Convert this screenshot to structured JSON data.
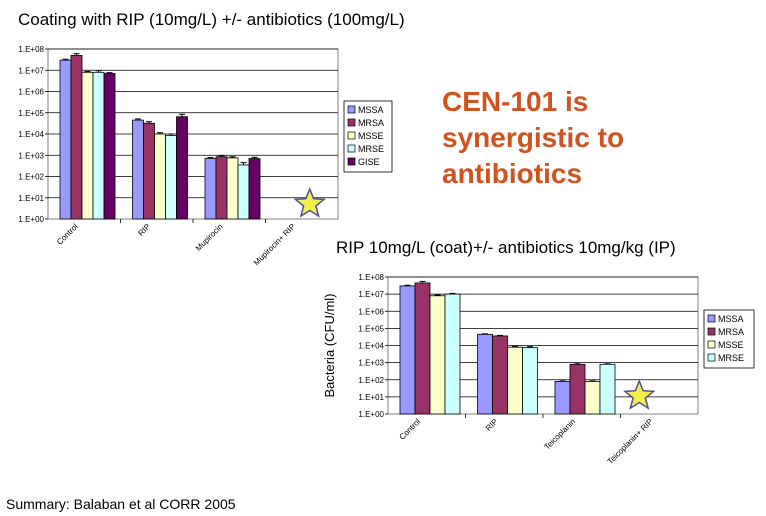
{
  "slide": {
    "title": "Coating with RIP (10mg/L) +/- antibiotics (100mg/L)",
    "headline": [
      "CEN-101 is",
      "synergistic to",
      "antibiotics"
    ],
    "footer": "Summary:  Balaban  et al  CORR  2005",
    "headline_color": "#d0531f",
    "star_icon": "star-icon",
    "star_color": "#f2ef4a"
  },
  "chart_data": [
    {
      "type": "bar",
      "title": "Coating with RIP (10mg/L) +/- antibiotics (100mg/L)",
      "xlabel": "",
      "ylabel": "",
      "y_scale": "log",
      "ylim": [
        1,
        100000000
      ],
      "y_ticks": [
        "1.E+00",
        "1.E+01",
        "1.E+02",
        "1.E+03",
        "1.E+04",
        "1.E+05",
        "1.E+06",
        "1.E+07",
        "1.E+08"
      ],
      "categories": [
        "Control",
        "RIP",
        "Mupirocin",
        "Mupirocin+ RIP"
      ],
      "legend_position": "right",
      "series": [
        {
          "name": "MSSA",
          "color": "#9999ff",
          "values": [
            30000000,
            45000,
            700,
            null
          ],
          "errors": [
            3000000,
            6000,
            80,
            null
          ]
        },
        {
          "name": "MRSA",
          "color": "#993366",
          "values": [
            50000000,
            32000,
            850,
            null
          ],
          "errors": [
            10000000,
            6000,
            100,
            null
          ]
        },
        {
          "name": "MSSE",
          "color": "#ffffcc",
          "values": [
            8000000,
            10000,
            750,
            null
          ],
          "errors": [
            800000,
            1500,
            100,
            null
          ]
        },
        {
          "name": "MRSE",
          "color": "#ccffff",
          "values": [
            8000000,
            8500,
            350,
            null
          ],
          "errors": [
            1500000,
            1500,
            100,
            null
          ]
        },
        {
          "name": "GISE",
          "color": "#660066",
          "values": [
            7000000,
            65000,
            700,
            null
          ],
          "errors": [
            700000,
            20000,
            100,
            null
          ]
        }
      ],
      "star_category": "Mupirocin+ RIP"
    },
    {
      "type": "bar",
      "title": "RIP 10mg/L (coat)+/- antibiotics 10mg/kg (IP)",
      "xlabel": "",
      "ylabel": "Bacteria (CFU/ml)",
      "y_scale": "log",
      "ylim": [
        1,
        100000000
      ],
      "y_ticks": [
        "1.E+00",
        "1.E+01",
        "1.E+02",
        "1.E+03",
        "1.E+04",
        "1.E+05",
        "1.E+06",
        "1.E+07",
        "1.E+08"
      ],
      "categories": [
        "Control",
        "RIP",
        "Teicoplanin",
        "Teicoplanin+ RIP"
      ],
      "legend_position": "right",
      "series": [
        {
          "name": "MSSA",
          "color": "#9999ff",
          "values": [
            30000000,
            45000,
            80,
            null
          ],
          "errors": [
            3000000,
            3000,
            5,
            null
          ]
        },
        {
          "name": "MRSA",
          "color": "#993366",
          "values": [
            45000000,
            36000,
            800,
            null
          ],
          "errors": [
            10000000,
            3000,
            150,
            null
          ]
        },
        {
          "name": "MSSE",
          "color": "#ffffcc",
          "values": [
            8000000,
            8000,
            80,
            null
          ],
          "errors": [
            800000,
            1000,
            5,
            null
          ]
        },
        {
          "name": "MRSE",
          "color": "#ccffff",
          "values": [
            10000000,
            7500,
            800,
            null
          ],
          "errors": [
            1000000,
            1000,
            50,
            null
          ]
        }
      ],
      "star_category": "Teicoplanin+ RIP"
    }
  ]
}
